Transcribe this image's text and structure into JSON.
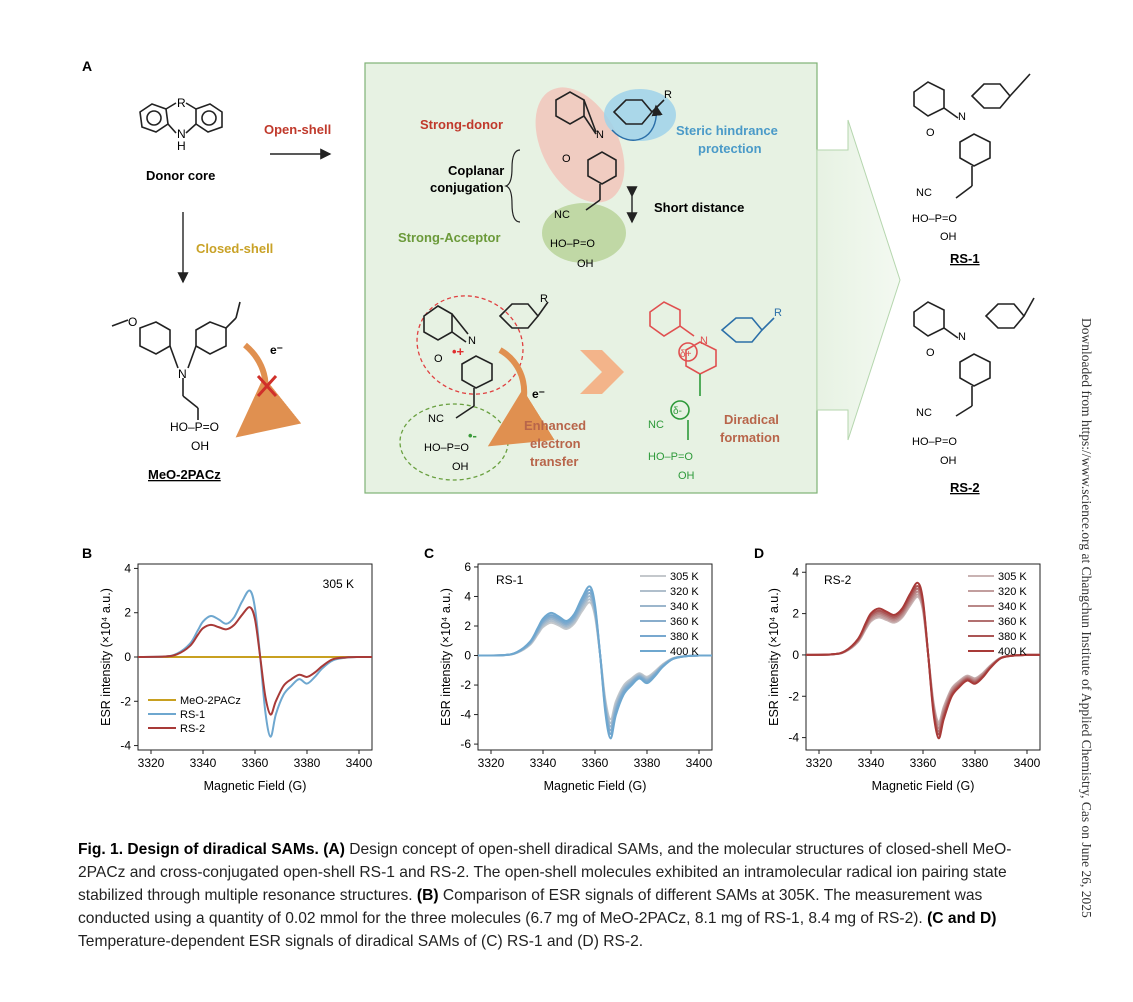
{
  "panelA": {
    "letter": "A",
    "donor_core": {
      "label": "Donor core",
      "R": "R",
      "NH": "H",
      "N": "N"
    },
    "open_shell": "Open-shell",
    "closed_shell": "Closed-shell",
    "meo_name": "MeO-2PACz",
    "electron": "e⁻",
    "atoms": {
      "N": "N",
      "O": "O",
      "R": "R",
      "NC": "NC",
      "HO": "HO",
      "P": "P",
      "OH": "OH"
    },
    "center": {
      "strong_donor": "Strong-donor",
      "steric": [
        "Steric hindrance",
        "protection"
      ],
      "coplanar": [
        "Coplanar",
        "conjugation"
      ],
      "short_distance": "Short distance",
      "strong_acceptor": "Strong-Acceptor",
      "enhanced": [
        "Enhanced",
        "electron",
        "transfer"
      ],
      "diradical": [
        "Diradical",
        "formation"
      ],
      "delta_plus": "δ+",
      "delta_minus": "δ-"
    },
    "rs1": "RS-1",
    "rs2": "RS-2"
  },
  "colors": {
    "red": "#c0392b",
    "blue": "#5aa8d0",
    "gold": "#c9a227",
    "green": "#6b9a3a",
    "box_bg": "#e7f2e3",
    "rs_red": "#a83a38",
    "rs_blue": "#6ea7cf",
    "meo": "#c8a020",
    "molecule_red": "#e05050",
    "molecule_green": "#2e9a3a"
  },
  "chart_data": [
    {
      "panel": "B",
      "type": "line",
      "annotation": "305 K",
      "xlabel": "Magnetic Field (G)",
      "ylabel": "ESR intensity (×10⁴ a.u.)",
      "xlim": [
        3315,
        3405
      ],
      "ylim": [
        -4.2,
        4.2
      ],
      "xticks": [
        "3320",
        "3340",
        "3360",
        "3380",
        "3400"
      ],
      "yticks": [
        "-4",
        "-2",
        "0",
        "2",
        "4"
      ],
      "ytick_values": [
        -4,
        -2,
        0,
        2,
        4
      ],
      "legend": "bottom-left",
      "x": [
        3315,
        3325,
        3330,
        3335,
        3338,
        3340,
        3343,
        3346,
        3349,
        3352,
        3355,
        3358,
        3360,
        3362,
        3364,
        3366,
        3368,
        3371,
        3374,
        3377,
        3380,
        3383,
        3386,
        3390,
        3395,
        3400,
        3405
      ],
      "series": [
        {
          "name": "MeO-2PACz",
          "color": "#c8a020",
          "values": [
            0,
            0,
            0,
            0,
            0,
            0,
            0,
            0,
            0,
            0,
            0,
            0,
            0,
            0,
            0,
            0,
            0,
            0,
            0,
            0,
            0,
            0,
            0,
            0,
            0,
            0,
            0
          ]
        },
        {
          "name": "RS-1",
          "color": "#6ea7cf",
          "values": [
            0,
            0.02,
            0.15,
            0.6,
            1.2,
            1.6,
            1.85,
            1.7,
            1.5,
            1.8,
            2.5,
            3.0,
            2.2,
            0.0,
            -2.5,
            -3.6,
            -2.6,
            -1.7,
            -1.3,
            -1.0,
            -1.2,
            -0.9,
            -0.5,
            -0.15,
            -0.03,
            0,
            0
          ]
        },
        {
          "name": "RS-2",
          "color": "#a83a38",
          "values": [
            0,
            0.02,
            0.12,
            0.5,
            1.0,
            1.3,
            1.45,
            1.35,
            1.25,
            1.45,
            1.9,
            2.25,
            1.7,
            0.0,
            -1.8,
            -2.6,
            -2.0,
            -1.3,
            -1.0,
            -0.8,
            -0.9,
            -0.7,
            -0.4,
            -0.1,
            -0.02,
            0,
            0
          ]
        }
      ]
    },
    {
      "panel": "C",
      "type": "line",
      "annotation": "RS-1",
      "xlabel": "Magnetic Field (G)",
      "ylabel": "ESR intensity (×10⁴ a.u.)",
      "xlim": [
        3315,
        3405
      ],
      "ylim": [
        -6.4,
        6.2
      ],
      "xticks": [
        "3320",
        "3340",
        "3360",
        "3380",
        "3400"
      ],
      "yticks": [
        "-6",
        "-4",
        "-2",
        "0",
        "2",
        "4",
        "6"
      ],
      "ytick_values": [
        -6,
        -4,
        -2,
        0,
        2,
        4,
        6
      ],
      "legend": "top-right",
      "x": [
        3315,
        3325,
        3330,
        3335,
        3338,
        3340,
        3343,
        3346,
        3349,
        3352,
        3355,
        3358,
        3360,
        3362,
        3364,
        3366,
        3368,
        3371,
        3374,
        3377,
        3380,
        3383,
        3386,
        3390,
        3395,
        3400,
        3405
      ],
      "base_shape": [
        0,
        0.02,
        0.15,
        0.6,
        1.2,
        1.6,
        1.85,
        1.7,
        1.5,
        1.8,
        2.5,
        3.0,
        2.2,
        0.0,
        -2.5,
        -3.6,
        -2.6,
        -1.7,
        -1.3,
        -1.0,
        -1.2,
        -0.9,
        -0.5,
        -0.15,
        -0.03,
        0,
        0
      ],
      "series": [
        {
          "name": "305 K",
          "color": "#c4c8cc",
          "scale": 1.2
        },
        {
          "name": "320 K",
          "color": "#b0bfcc",
          "scale": 1.27
        },
        {
          "name": "340 K",
          "color": "#9cb6cc",
          "scale": 1.34
        },
        {
          "name": "360 K",
          "color": "#88adcc",
          "scale": 1.41
        },
        {
          "name": "380 K",
          "color": "#78a8cf",
          "scale": 1.48
        },
        {
          "name": "400 K",
          "color": "#6ea7cf",
          "scale": 1.56
        }
      ]
    },
    {
      "panel": "D",
      "type": "line",
      "annotation": "RS-2",
      "xlabel": "Magnetic Field (G)",
      "ylabel": "ESR intensity (×10⁴ a.u.)",
      "xlim": [
        3315,
        3405
      ],
      "ylim": [
        -4.6,
        4.4
      ],
      "xticks": [
        "3320",
        "3340",
        "3360",
        "3380",
        "3400"
      ],
      "yticks": [
        "-4",
        "-2",
        "0",
        "2",
        "4"
      ],
      "ytick_values": [
        -4,
        -2,
        0,
        2,
        4
      ],
      "legend": "top-right",
      "x": [
        3315,
        3325,
        3330,
        3335,
        3338,
        3340,
        3343,
        3346,
        3349,
        3352,
        3355,
        3358,
        3360,
        3362,
        3364,
        3366,
        3368,
        3371,
        3374,
        3377,
        3380,
        3383,
        3386,
        3390,
        3395,
        3400,
        3405
      ],
      "base_shape": [
        0,
        0.02,
        0.12,
        0.5,
        1.0,
        1.3,
        1.45,
        1.35,
        1.25,
        1.45,
        1.9,
        2.25,
        1.7,
        0.0,
        -1.8,
        -2.6,
        -2.0,
        -1.3,
        -1.0,
        -0.8,
        -0.9,
        -0.7,
        -0.4,
        -0.1,
        -0.02,
        0,
        0
      ],
      "series": [
        {
          "name": "305 K",
          "color": "#c9b3b3",
          "scale": 1.25
        },
        {
          "name": "320 K",
          "color": "#c29e9e",
          "scale": 1.3
        },
        {
          "name": "340 K",
          "color": "#b98888",
          "scale": 1.36
        },
        {
          "name": "360 K",
          "color": "#b27070",
          "scale": 1.42
        },
        {
          "name": "380 K",
          "color": "#ab5555",
          "scale": 1.48
        },
        {
          "name": "400 K",
          "color": "#a83a38",
          "scale": 1.55
        }
      ]
    }
  ],
  "caption": {
    "title": "Fig. 1. Design of diradical SAMs.",
    "parts": [
      {
        "b": "(A)",
        "t": " Design concept of open-shell diradical SAMs, and the molecular structures of closed-shell MeO-2PACz and cross-conjugated open-shell RS-1 and RS-2. The open-shell molecules exhibited an intramolecular radical ion pairing state stabilized through multiple resonance structures. "
      },
      {
        "b": "(B)",
        "t": " Comparison of ESR signals of different SAMs at 305K. The measurement was conducted using a quantity of 0.02 mmol for the three molecules (6.7 mg of MeO-2PACz, 8.1 mg of RS-1, 8.4 mg of RS-2). "
      },
      {
        "b": "(C and D)",
        "t": " Temperature-dependent ESR signals of diradical SAMs of (C) RS-1 and (D) RS-2."
      }
    ]
  },
  "sidebar": "Downloaded from https://www.science.org at Changchun Institute of Applied Chemistry, Cas on June 26, 2025"
}
